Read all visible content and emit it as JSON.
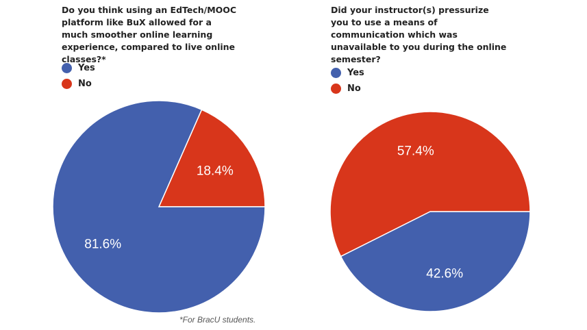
{
  "chart_data": [
    {
      "type": "pie",
      "title": "Do  you think using an EdTech/MOOC platform like BuX allowed for a much smoother online learning experience, compared to live online classes?*",
      "categories": [
        "Yes",
        "No"
      ],
      "values": [
        81.6,
        18.4
      ],
      "labels": [
        "81.6%",
        "18.4%"
      ],
      "colors": [
        "#4360ad",
        "#d8361b"
      ],
      "legend": "top-left"
    },
    {
      "type": "pie",
      "title": "Did your instructor(s) pressurize you to use a means of communication which was unavailable to you during the online semester?",
      "categories": [
        "Yes",
        "No"
      ],
      "values": [
        42.6,
        57.4
      ],
      "labels": [
        "42.6%",
        "57.4%"
      ],
      "colors": [
        "#4360ad",
        "#d8361b"
      ],
      "legend": "top-left"
    }
  ],
  "footnote": "*For BracU students."
}
